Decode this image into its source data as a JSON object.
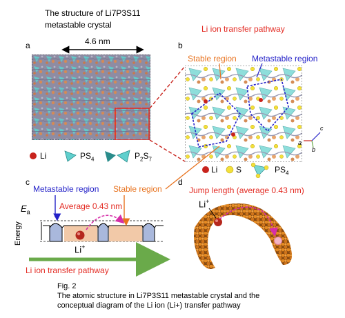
{
  "header": {
    "title_line1": "The structure of Li7P3S11",
    "title_line2": "metastable crystal",
    "pathway_title": "Li ion transfer pathway"
  },
  "panel_a": {
    "letter": "a",
    "scale": "4.6 nm"
  },
  "panel_b": {
    "letter": "b",
    "stable_label": "Stable region",
    "metastable_label": "Metastable region",
    "axis_c": "c",
    "axis_a": "a",
    "axis_b": "b"
  },
  "legend_a": {
    "li": "Li",
    "ps4": "PS",
    "ps4_sub": "4",
    "p2s7_p": "P",
    "p2s7_p_sub": "2",
    "p2s7_s": "S",
    "p2s7_s_sub": "7"
  },
  "legend_b": {
    "li": "Li",
    "s": "S",
    "ps4": "PS",
    "ps4_sub": "4"
  },
  "panel_c": {
    "letter": "c",
    "metastable_label": "Metastable region",
    "stable_label": "Stable region",
    "ea_label": "E",
    "ea_sub": "a",
    "average_label": "Average 0.43 nm",
    "energy_axis": "Energy",
    "li_ion": "Li",
    "li_sup": "+",
    "pathway_label": "Li ion transfer pathway"
  },
  "panel_d": {
    "letter": "d",
    "title": "Jump length (average 0.43 nm)",
    "li_ion": "Li",
    "li_sup": "+"
  },
  "caption": {
    "fig": "Fig. 2",
    "line1": "The atomic structure in Li7P3S11 metastable crystal and the",
    "line2": "conceptual diagram of the Li ion (Li+) transfer pathway"
  },
  "colors": {
    "red_text": "#e32a22",
    "orange": "#e8731f",
    "blue": "#2321c8",
    "teal": "#5fcfcd",
    "green_arrow": "#6aaa4a",
    "pink_arrow": "#d62fa8",
    "stable_fill": "#f2c9a8",
    "metastable_fill": "#a9b8dc"
  }
}
